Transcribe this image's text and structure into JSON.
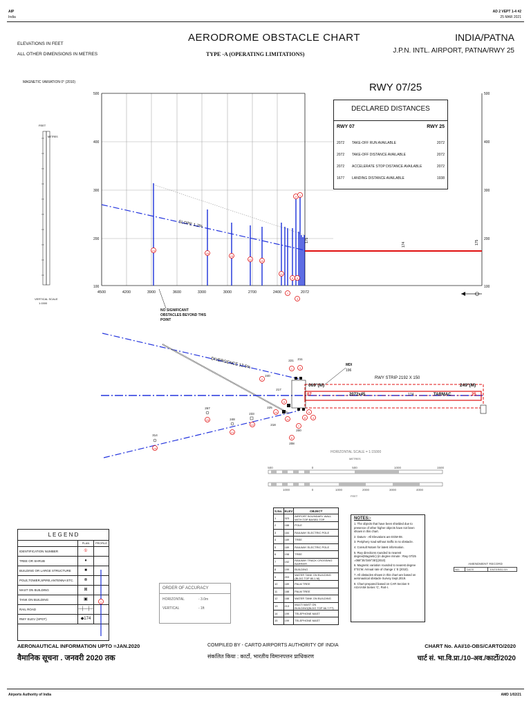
{
  "header": {
    "left_top": "AIP",
    "left_sub": "India",
    "right_top": "AD 2 VEPT 1-4 #2",
    "right_sub": "25 MAR 2021",
    "units_line1": "ELEVATIONS IN FEET",
    "units_line2": "ALL OTHER DIMENSIONS IN METRES",
    "title": "AERODROME OBSTACLE CHART",
    "subtitle": "TYPE -A (OPERATING LIMITATIONS)",
    "country": "INDIA/PATNA",
    "airport": "J.P.N. INTL. AIRPORT, PATNA/RWY 25"
  },
  "profile": {
    "mag_variation": "MAGNETIC VARIATION 0° (2010)",
    "runway_title": "RWY 07/25",
    "y_ticks": [
      "500",
      "400",
      "300",
      "200",
      "100"
    ],
    "x_ticks": [
      "4500",
      "4200",
      "3900",
      "3600",
      "3300",
      "3000",
      "2700",
      "2400",
      "2072"
    ],
    "slope_label": "SLOPE 1.2%",
    "no_obstacle_note": "NO SIGNIFICANT OBSTACLES BEYOND THIS POINT",
    "elev_labels": [
      "175",
      "174",
      "175"
    ],
    "scale_title": "VERTICAL SCALE",
    "scale_value": "1:1500",
    "scale_feet": "FEET",
    "scale_metres": "METRES"
  },
  "declared": {
    "title": "DECLARED DISTANCES",
    "col_left": "RWY 07",
    "col_right": "RWY 25",
    "rows": [
      {
        "left": "2072",
        "label": "TAKE-OFF RUN AVAILABLE",
        "right": "2072"
      },
      {
        "left": "2072",
        "label": "TAKE-OFF DISTANCE AVAILABLE",
        "right": "2072"
      },
      {
        "left": "2072",
        "label": "ACCELERATE STOP DISTANCE AVAILABLE",
        "right": "2072"
      },
      {
        "left": "1677",
        "label": "LANDING DISTANCE AVAILABLE",
        "right": "1938"
      }
    ]
  },
  "plan": {
    "divergence": "DIVERGENCE 12.5%",
    "strip_label": "RWY STRIP 2192 X 150",
    "runway_dims": "2072x45",
    "rwy_left": "07",
    "rwy_right": "25",
    "elev": "174",
    "surface": "TARMAC",
    "thr_left": "069°(M)",
    "thr_right": "249°(M)",
    "mdi_label": "MDI",
    "mdi_value": "196",
    "spot_heights": [
      "314",
      "267",
      "248",
      "233",
      "240",
      "221",
      "211",
      "217",
      "225",
      "218",
      "200",
      "208"
    ],
    "scale_title": "HORIZONTAL SCALE = 1:15000",
    "metres_label": "METRES",
    "feet_label": "FEET",
    "metre_ticks": [
      "500",
      "0",
      "500",
      "1000",
      "1500"
    ],
    "feet_ticks": [
      "1000",
      "0",
      "1000",
      "2000",
      "3000",
      "4000"
    ]
  },
  "objects": {
    "headers": [
      "S.No.",
      "ELEV",
      "OBJECT"
    ],
    "rows": [
      [
        "1",
        "323",
        "AIRPORT BOUNDARY WALL WITH TOP BASED TOP"
      ],
      [
        "2",
        "188",
        "POLE"
      ],
      [
        "3",
        "184",
        "RAILWAY ELECTRIC POLE"
      ],
      [
        "4",
        "189",
        "TREE"
      ],
      [
        "5",
        "189",
        "RAILWAY ELECTRIC POLE"
      ],
      [
        "6",
        "198",
        "TREE"
      ],
      [
        "7",
        "192",
        "RAILWAY TRACK CROSSING BARRIER"
      ],
      [
        "8",
        "199",
        "BUILDING"
      ],
      [
        "9",
        "203",
        "WATER TANK ON BUILDING (BLDG TOP 80.1 M)"
      ],
      [
        "10",
        "189",
        "PALM TREE"
      ],
      [
        "11",
        "188",
        "PALM TREE"
      ],
      [
        "12",
        "188",
        "WATER TANK ON BUILDING"
      ],
      [
        "13",
        "213",
        "MULTI MAST ON BUILDING(BLDG TOP 66.7 FT)"
      ],
      [
        "14",
        "199",
        "TELEPHONE MAST"
      ],
      [
        "15",
        "199",
        "TELEPHONE MAST"
      ]
    ]
  },
  "notes": {
    "title": "NOTES:-",
    "items": [
      "1. The objects that have been shielded due to presence of other higher objects have not been shown in this chart.",
      "2. Datum - All Elevations are EGM-08.",
      "3. Periphery road without traffic is no obstacle.",
      "4. Consult Notam for latest information.",
      "5. Rwy directions rounded to nearest degree(Magnetic) (in degree minute : Rwy 07/25 =068°35'/248°35')(2010)",
      "6. Magnetic variation rounded to nearest degree 0°01'W. Annual rate of change 1' E (2010).",
      "7. All obstacles shown in this chart are based on aeronautical obstacle Survey Sept.2019.",
      "8. Chart prepared based on CAR Section 9 AGA/AIM Series 'C', Part-I."
    ]
  },
  "legend": {
    "title": "L E G E N D",
    "col_plan": "PLAN",
    "col_profile": "PROFILE",
    "items": [
      "IDENTIFICATION NUMBER",
      "TREE OR SHRUB",
      "BUILDING OR LARGE STRUCTURE",
      "POLE,TOWER,SPIRE,ANTENNA ETC.",
      "MAST ON BUILDING",
      "TANK ON BUILDING",
      "RAIL ROAD",
      "RWY ELEV (SPOT)"
    ],
    "plan_sym": [
      "①",
      "♦",
      "■",
      "⊗",
      "⊠",
      "▣",
      "─┼─┼─",
      "◆174"
    ]
  },
  "accuracy": {
    "title": "ORDER OF ACCURACY",
    "horizontal_label": "HORIZONTAL",
    "horizontal_value": "- 3.0m",
    "vertical_label": "VERTICAL",
    "vertical_value": "- 1ft"
  },
  "amendment": {
    "title": "AMENDMENT RECORD",
    "cols": [
      "NO.",
      "DATE",
      "ENTERED BY"
    ]
  },
  "footer": {
    "ais_en": "AERONAUTICAL INFORMATION UPTO =JAN.2020",
    "ais_hi": "वैमानिक सूचना . जनवरी 2020 तक",
    "compiled_en": "COMPILED BY - CARTO AIRPORTS AUTHORITY OF INDIA",
    "compiled_hi": "संकलित किया : कार्टो, भारतीय विमानपत्तन प्राधिकरण",
    "chart_no_en": "CHART No. AAI/10-OBS/CARTO/2020",
    "chart_no_hi": "चार्ट सं. भा.वि.प्रा./10-अव./कार्टो/2020",
    "bottom_left": "Airports Authority of India",
    "bottom_right": "AMD 1/02/21"
  },
  "colors": {
    "obstacle": "#1a2fd8",
    "runway": "#e01010",
    "slope": "#2233dd",
    "ident": "#e01010"
  }
}
